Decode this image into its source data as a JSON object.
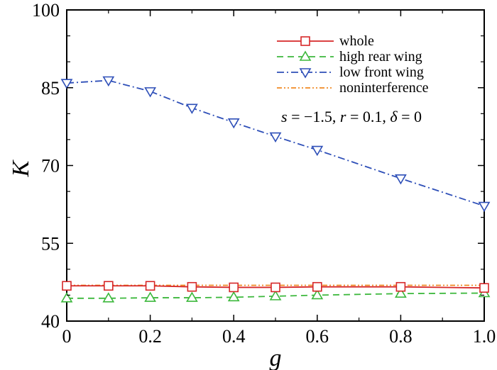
{
  "chart_data": {
    "type": "line",
    "title": "",
    "xlabel": "g",
    "ylabel": "K",
    "xlim": [
      0,
      1.0
    ],
    "ylim": [
      40,
      100
    ],
    "xticks": [
      0,
      0.2,
      0.4,
      0.6,
      0.8,
      1.0
    ],
    "xtick_labels": [
      "0",
      "0.2",
      "0.4",
      "0.6",
      "0.8",
      "1.0"
    ],
    "yticks": [
      40,
      55,
      70,
      85,
      100
    ],
    "ytick_labels": [
      "40",
      "55",
      "70",
      "85",
      "100"
    ],
    "grid": false,
    "legend_position": "top-right",
    "annotation": {
      "s_label": "s",
      "s_value": " = −1.5, ",
      "r_label": "r",
      "r_value": " = 0.1, ",
      "d_label": "δ",
      "d_value": " = 0"
    },
    "series": [
      {
        "name": "whole",
        "color": "#d62728",
        "marker": "square",
        "dash": "solid",
        "x": [
          0,
          0.1,
          0.2,
          0.3,
          0.4,
          0.5,
          0.6,
          0.8,
          1.0
        ],
        "values": [
          46.8,
          46.8,
          46.8,
          46.6,
          46.5,
          46.5,
          46.6,
          46.6,
          46.4
        ]
      },
      {
        "name": "high rear wing",
        "color": "#3cb83c",
        "marker": "triangle-up",
        "dash": "dashed",
        "x": [
          0,
          0.1,
          0.2,
          0.3,
          0.4,
          0.5,
          0.6,
          0.8,
          1.0
        ],
        "values": [
          44.4,
          44.4,
          44.5,
          44.5,
          44.6,
          44.8,
          45.0,
          45.3,
          45.4
        ]
      },
      {
        "name": "low front wing",
        "color": "#2e4fb8",
        "marker": "triangle-down",
        "dash": "dashdot",
        "x": [
          0,
          0.1,
          0.2,
          0.3,
          0.4,
          0.5,
          0.6,
          0.8,
          1.0
        ],
        "values": [
          85.9,
          86.4,
          84.3,
          81.1,
          78.3,
          75.6,
          73.0,
          67.5,
          62.2
        ]
      },
      {
        "name": "noninterference",
        "color": "#f08a24",
        "marker": "none",
        "dash": "dashdotdot",
        "x": [
          0,
          1.0
        ],
        "values": [
          46.9,
          46.9
        ]
      }
    ]
  }
}
